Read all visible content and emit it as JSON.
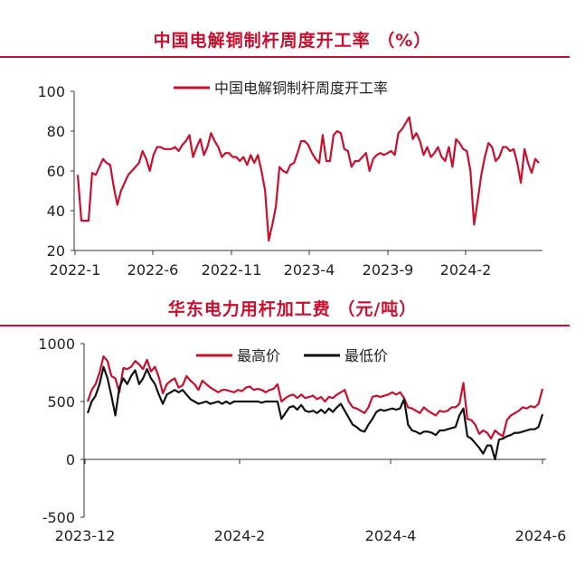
{
  "charts": [
    {
      "title": "中国电解铜制杆周度开工率 （%）"
    },
    {
      "title": "华东电力用杆加工费 （元/吨）"
    }
  ],
  "chart_data": [
    {
      "type": "line",
      "title": "中国电解铜制杆周度开工率 （%）",
      "xlabel": "",
      "ylabel": "",
      "ylim": [
        20,
        100
      ],
      "yticks": [
        20,
        40,
        60,
        80,
        100
      ],
      "xticks": [
        "2022-1",
        "2022-6",
        "2022-11",
        "2023-4",
        "2023-9",
        "2024-2"
      ],
      "grid": false,
      "legend": "top-center",
      "colors": [
        "#c8102e"
      ],
      "series": [
        {
          "name": "中国电解铜制杆周度开工率",
          "values": [
            58,
            35,
            35,
            35,
            59,
            58,
            62,
            66,
            64,
            63,
            52,
            43,
            50,
            54,
            58,
            60,
            62,
            64,
            70,
            66,
            60,
            68,
            72,
            72,
            71,
            71,
            71,
            72,
            70,
            73,
            75,
            78,
            67,
            72,
            76,
            68,
            72,
            79,
            75,
            72,
            67,
            69,
            69,
            67,
            67,
            65,
            67,
            63,
            68,
            64,
            68,
            60,
            50,
            25,
            33,
            42,
            62,
            60,
            59,
            63,
            64,
            69,
            75,
            75,
            73,
            69,
            66,
            64,
            78,
            65,
            65,
            78,
            80,
            79,
            71,
            70,
            62,
            65,
            65,
            67,
            69,
            60,
            66,
            68,
            69,
            68,
            69,
            70,
            68,
            79,
            81,
            84,
            87,
            76,
            79,
            75,
            68,
            72,
            67,
            69,
            72,
            67,
            65,
            72,
            62,
            76,
            74,
            71,
            70,
            60,
            33,
            45,
            58,
            67,
            74,
            72,
            65,
            67,
            72,
            72,
            70,
            71,
            64,
            54,
            71,
            64,
            59,
            66,
            64
          ]
        }
      ]
    },
    {
      "type": "line",
      "title": "华东电力用杆加工费 （元/吨）",
      "xlabel": "",
      "ylabel": "",
      "ylim": [
        -500,
        1000
      ],
      "yticks": [
        -500,
        0,
        500,
        1000
      ],
      "xticks": [
        "2023-12",
        "2024-2",
        "2024-4",
        "2024-6"
      ],
      "grid": false,
      "legend": "top-center",
      "colors": [
        "#c8102e",
        "#111111"
      ],
      "series": [
        {
          "name": "最高价",
          "values": [
            500,
            600,
            650,
            750,
            890,
            850,
            720,
            700,
            580,
            790,
            780,
            800,
            850,
            820,
            780,
            860,
            760,
            800,
            710,
            570,
            650,
            680,
            700,
            620,
            640,
            720,
            680,
            650,
            600,
            680,
            650,
            620,
            600,
            580,
            600,
            600,
            590,
            580,
            600,
            590,
            620,
            630,
            600,
            610,
            600,
            580,
            600,
            610,
            650,
            500,
            530,
            550,
            560,
            530,
            560,
            530,
            540,
            550,
            520,
            540,
            500,
            540,
            530,
            560,
            580,
            600,
            500,
            450,
            440,
            420,
            400,
            450,
            540,
            550,
            540,
            550,
            560,
            580,
            560,
            580,
            530,
            450,
            440,
            420,
            400,
            450,
            420,
            400,
            380,
            420,
            410,
            420,
            450,
            450,
            480,
            660,
            350,
            340,
            300,
            220,
            250,
            230,
            180,
            250,
            220,
            200,
            340,
            380,
            400,
            420,
            450,
            440,
            460,
            450,
            480,
            610
          ]
        },
        {
          "name": "最低价",
          "values": [
            400,
            500,
            550,
            650,
            800,
            700,
            550,
            380,
            620,
            700,
            650,
            720,
            770,
            650,
            700,
            780,
            700,
            650,
            560,
            480,
            560,
            580,
            600,
            580,
            600,
            560,
            520,
            500,
            480,
            490,
            500,
            480,
            490,
            500,
            480,
            500,
            480,
            500,
            500,
            500,
            500,
            500,
            500,
            500,
            490,
            500,
            500,
            500,
            500,
            350,
            400,
            450,
            460,
            430,
            470,
            420,
            410,
            420,
            400,
            430,
            400,
            440,
            410,
            450,
            480,
            420,
            360,
            300,
            280,
            250,
            240,
            300,
            350,
            410,
            430,
            420,
            430,
            440,
            430,
            440,
            520,
            300,
            250,
            240,
            220,
            240,
            240,
            230,
            210,
            250,
            250,
            260,
            270,
            280,
            380,
            440,
            200,
            180,
            140,
            100,
            50,
            120,
            120,
            0,
            170,
            180,
            200,
            210,
            230,
            230,
            240,
            250,
            260,
            260,
            280,
            390
          ]
        }
      ]
    }
  ]
}
